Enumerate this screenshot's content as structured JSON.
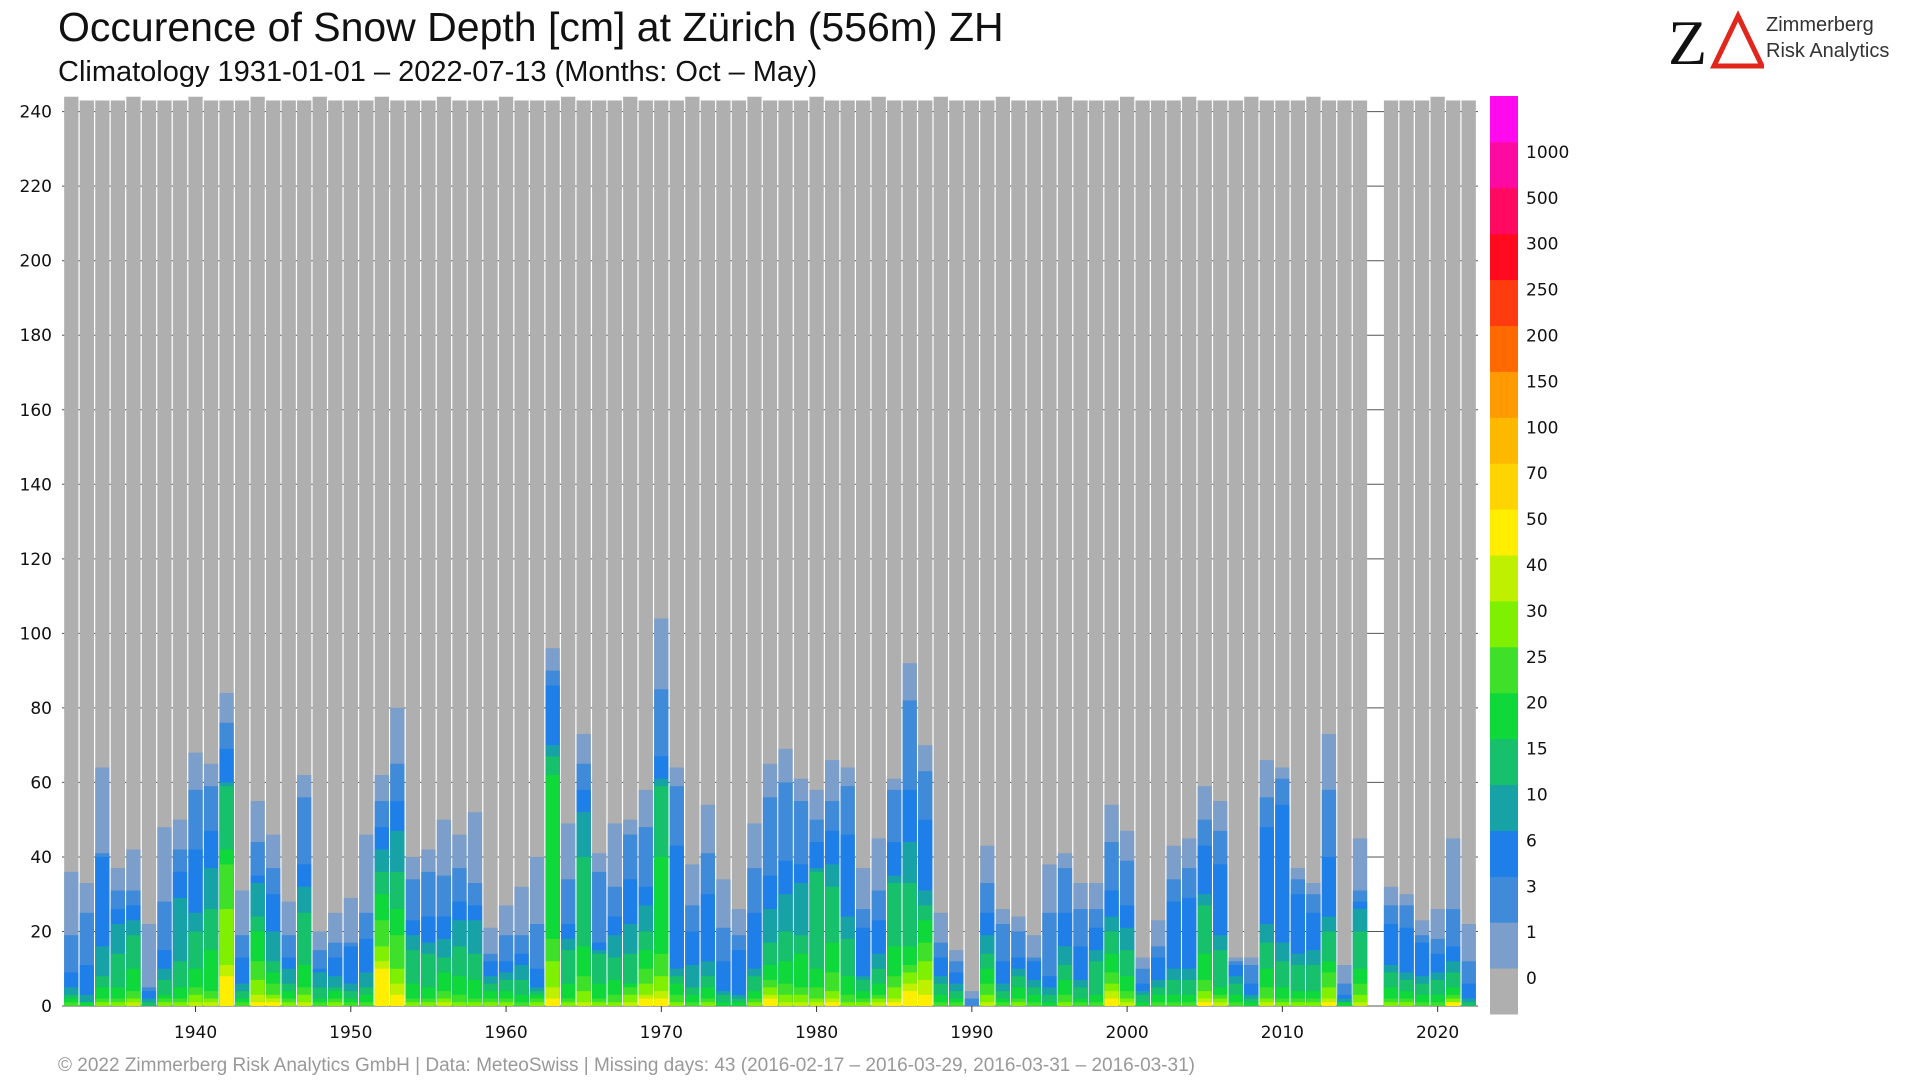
{
  "header": {
    "title": "Occurence of Snow Depth [cm] at Zürich (556m) ZH",
    "subtitle": "Climatology 1931-01-01 – 2022-07-13 (Months: Oct – May)"
  },
  "logo": {
    "line1": "Zimmerberg",
    "line2": "Risk Analytics",
    "z_color": "#111111",
    "delta_color": "#e1261c"
  },
  "footer": {
    "text": "© 2022 Zimmerberg Risk Analytics GmbH | Data: MeteoSwiss | Missing days: 43 (2016-02-17 – 2016-03-29, 2016-03-31 – 2016-03-31)"
  },
  "chart_data": {
    "type": "bar",
    "stacked": true,
    "grid": true,
    "ylim": [
      0,
      245
    ],
    "y_ticks": [
      0,
      20,
      40,
      60,
      80,
      100,
      120,
      140,
      160,
      180,
      200,
      220,
      240
    ],
    "x_tick_labels": [
      "1940",
      "1950",
      "1960",
      "1970",
      "1980",
      "1990",
      "2000",
      "2010",
      "2020"
    ],
    "x_tick_values": [
      1940,
      1950,
      1960,
      1970,
      1980,
      1990,
      2000,
      2010,
      2020
    ],
    "x_range": [
      1931.4,
      2022.6
    ],
    "legend": {
      "position": "right",
      "labels": [
        "0",
        "1",
        "3",
        "6",
        "10",
        "15",
        "20",
        "25",
        "30",
        "40",
        "50",
        "70",
        "100",
        "150",
        "200",
        "250",
        "300",
        "500",
        "1000"
      ],
      "colors": [
        "#afafaf",
        "#7b9fca",
        "#3f8ad9",
        "#1e7fe8",
        "#17a3a6",
        "#17c06b",
        "#0fd83a",
        "#3fe02a",
        "#7ff000",
        "#bff000",
        "#ffee00",
        "#ffd400",
        "#ffb800",
        "#ff9a00",
        "#ff6a00",
        "#ff3c10",
        "#ff0a1e",
        "#ff0a60",
        "#ff0aa0",
        "#ff0aee"
      ]
    },
    "thresholds": [
      1,
      3,
      6,
      10,
      15,
      20,
      25,
      30,
      40,
      50
    ],
    "series_colors": [
      "#7b9fca",
      "#3f8ad9",
      "#1e7fe8",
      "#17a3a6",
      "#17c06b",
      "#0fd83a",
      "#3fe02a",
      "#7ff000",
      "#bff000",
      "#ffee00"
    ],
    "total_color": "#afafaf",
    "years": [
      1932,
      1933,
      1934,
      1935,
      1936,
      1937,
      1938,
      1939,
      1940,
      1941,
      1942,
      1943,
      1944,
      1945,
      1946,
      1947,
      1948,
      1949,
      1950,
      1951,
      1952,
      1953,
      1954,
      1955,
      1956,
      1957,
      1958,
      1959,
      1960,
      1961,
      1962,
      1963,
      1964,
      1965,
      1966,
      1967,
      1968,
      1969,
      1970,
      1971,
      1972,
      1973,
      1974,
      1975,
      1976,
      1977,
      1978,
      1979,
      1980,
      1981,
      1982,
      1983,
      1984,
      1985,
      1986,
      1987,
      1988,
      1989,
      1990,
      1991,
      1992,
      1993,
      1994,
      1995,
      1996,
      1997,
      1998,
      1999,
      2000,
      2001,
      2002,
      2003,
      2004,
      2005,
      2006,
      2007,
      2008,
      2009,
      2010,
      2011,
      2012,
      2013,
      2014,
      2015,
      2016,
      2017,
      2018,
      2019,
      2020,
      2021,
      2022
    ],
    "total_days": [
      244,
      243,
      243,
      243,
      244,
      243,
      243,
      243,
      244,
      243,
      243,
      243,
      244,
      243,
      243,
      243,
      244,
      243,
      243,
      243,
      244,
      243,
      243,
      243,
      244,
      243,
      243,
      243,
      244,
      243,
      243,
      243,
      244,
      243,
      243,
      243,
      244,
      243,
      243,
      243,
      244,
      243,
      243,
      243,
      244,
      243,
      243,
      243,
      244,
      243,
      243,
      243,
      244,
      243,
      243,
      243,
      244,
      243,
      243,
      243,
      244,
      243,
      243,
      243,
      244,
      243,
      243,
      243,
      244,
      243,
      243,
      243,
      244,
      243,
      243,
      243,
      244,
      243,
      243,
      243,
      244,
      243,
      243,
      243,
      null,
      243,
      243,
      243,
      244,
      243,
      243
    ],
    "days_ge_1": [
      36,
      33,
      64,
      37,
      42,
      22,
      48,
      50,
      68,
      65,
      84,
      31,
      55,
      46,
      28,
      62,
      20,
      25,
      29,
      46,
      62,
      80,
      40,
      42,
      50,
      46,
      52,
      21,
      27,
      32,
      40,
      96,
      49,
      73,
      41,
      49,
      50,
      58,
      104,
      64,
      38,
      54,
      34,
      26,
      49,
      65,
      69,
      61,
      58,
      66,
      64,
      37,
      45,
      61,
      92,
      70,
      25,
      15,
      4,
      43,
      26,
      24,
      19,
      38,
      41,
      33,
      33,
      54,
      47,
      13,
      23,
      43,
      45,
      59,
      55,
      13,
      13,
      66,
      64,
      37,
      33,
      73,
      11,
      45,
      null,
      32,
      30,
      23,
      26,
      45,
      22
    ],
    "days_ge_3": [
      19,
      25,
      41,
      31,
      31,
      5,
      28,
      42,
      58,
      59,
      76,
      19,
      44,
      37,
      19,
      56,
      15,
      17,
      17,
      25,
      55,
      65,
      34,
      36,
      35,
      37,
      33,
      14,
      19,
      19,
      22,
      90,
      34,
      65,
      36,
      32,
      46,
      48,
      85,
      59,
      27,
      41,
      21,
      19,
      37,
      56,
      60,
      55,
      50,
      55,
      59,
      26,
      31,
      58,
      82,
      63,
      17,
      12,
      2,
      33,
      22,
      20,
      13,
      25,
      37,
      26,
      26,
      44,
      39,
      10,
      16,
      34,
      37,
      50,
      47,
      12,
      11,
      56,
      61,
      34,
      30,
      58,
      6,
      31,
      null,
      27,
      27,
      19,
      18,
      26,
      12
    ],
    "days_ge_6": [
      9,
      11,
      40,
      26,
      27,
      4,
      15,
      36,
      42,
      47,
      69,
      13,
      35,
      30,
      13,
      38,
      10,
      13,
      16,
      18,
      48,
      55,
      23,
      24,
      24,
      28,
      27,
      12,
      12,
      14,
      10,
      86,
      22,
      58,
      17,
      24,
      34,
      32,
      67,
      43,
      20,
      30,
      12,
      15,
      25,
      35,
      39,
      38,
      44,
      47,
      46,
      21,
      23,
      44,
      58,
      50,
      13,
      9,
      0,
      25,
      12,
      13,
      12,
      8,
      25,
      16,
      21,
      31,
      27,
      6,
      13,
      28,
      29,
      43,
      38,
      11,
      6,
      48,
      54,
      30,
      25,
      40,
      3,
      28,
      null,
      22,
      21,
      17,
      14,
      16,
      6
    ],
    "days_ge_10": [
      5,
      3,
      16,
      22,
      23,
      2,
      10,
      29,
      25,
      37,
      60,
      6,
      33,
      20,
      10,
      32,
      9,
      8,
      6,
      9,
      42,
      47,
      19,
      17,
      18,
      23,
      23,
      8,
      9,
      11,
      5,
      70,
      18,
      52,
      15,
      19,
      22,
      27,
      61,
      10,
      11,
      12,
      4,
      3,
      10,
      26,
      30,
      33,
      37,
      38,
      24,
      8,
      14,
      35,
      44,
      31,
      8,
      6,
      0,
      19,
      6,
      10,
      7,
      5,
      16,
      7,
      15,
      24,
      21,
      4,
      7,
      10,
      10,
      30,
      19,
      8,
      3,
      22,
      17,
      14,
      15,
      24,
      2,
      26,
      null,
      11,
      9,
      8,
      9,
      12,
      2
    ],
    "days_ge_15": [
      3,
      1,
      8,
      14,
      19,
      1,
      7,
      12,
      20,
      26,
      59,
      4,
      24,
      12,
      6,
      25,
      5,
      5,
      4,
      5,
      36,
      36,
      15,
      14,
      13,
      16,
      14,
      6,
      7,
      7,
      4,
      67,
      15,
      40,
      14,
      13,
      14,
      20,
      59,
      8,
      5,
      8,
      3,
      2,
      8,
      17,
      20,
      19,
      36,
      32,
      18,
      7,
      10,
      33,
      33,
      27,
      6,
      4,
      0,
      14,
      4,
      8,
      5,
      3,
      11,
      5,
      12,
      20,
      15,
      3,
      5,
      7,
      7,
      27,
      15,
      6,
      2,
      17,
      12,
      11,
      11,
      20,
      1,
      20,
      null,
      9,
      7,
      6,
      7,
      9,
      1
    ],
    "days_ge_20": [
      2,
      1,
      5,
      5,
      10,
      0,
      3,
      5,
      10,
      15,
      42,
      2,
      20,
      9,
      4,
      11,
      2,
      4,
      2,
      3,
      30,
      26,
      6,
      5,
      9,
      8,
      7,
      4,
      4,
      3,
      3,
      62,
      6,
      16,
      6,
      7,
      6,
      15,
      40,
      6,
      3,
      5,
      1,
      1,
      4,
      11,
      12,
      14,
      10,
      17,
      8,
      4,
      6,
      16,
      16,
      23,
      3,
      2,
      0,
      10,
      2,
      5,
      3,
      1,
      7,
      2,
      3,
      14,
      8,
      1,
      3,
      3,
      3,
      14,
      5,
      3,
      1,
      10,
      5,
      4,
      4,
      12,
      1,
      10,
      null,
      5,
      4,
      3,
      3,
      5,
      0
    ],
    "days_ge_25": [
      1,
      0,
      2,
      2,
      4,
      0,
      2,
      2,
      5,
      4,
      38,
      1,
      12,
      6,
      2,
      5,
      1,
      2,
      1,
      1,
      23,
      19,
      2,
      2,
      4,
      3,
      2,
      2,
      2,
      1,
      2,
      18,
      2,
      8,
      2,
      3,
      5,
      10,
      14,
      3,
      1,
      2,
      0,
      0,
      2,
      7,
      6,
      5,
      5,
      9,
      3,
      2,
      3,
      8,
      11,
      17,
      1,
      1,
      0,
      6,
      1,
      2,
      1,
      0,
      3,
      1,
      1,
      9,
      4,
      0,
      1,
      1,
      1,
      7,
      3,
      1,
      0,
      5,
      2,
      2,
      2,
      9,
      0,
      6,
      null,
      2,
      2,
      1,
      1,
      3,
      0
    ],
    "days_ge_30": [
      0,
      0,
      1,
      1,
      2,
      0,
      1,
      1,
      3,
      2,
      26,
      0,
      7,
      3,
      1,
      3,
      0,
      1,
      0,
      0,
      16,
      10,
      1,
      1,
      2,
      1,
      1,
      1,
      1,
      0,
      1,
      12,
      1,
      4,
      1,
      1,
      3,
      6,
      8,
      1,
      0,
      1,
      0,
      0,
      1,
      5,
      3,
      3,
      2,
      4,
      1,
      1,
      2,
      5,
      9,
      12,
      0,
      0,
      0,
      3,
      0,
      1,
      0,
      0,
      1,
      0,
      0,
      6,
      2,
      0,
      0,
      0,
      0,
      4,
      2,
      0,
      0,
      2,
      1,
      1,
      1,
      5,
      0,
      3,
      null,
      1,
      1,
      0,
      0,
      2,
      0
    ],
    "days_ge_40": [
      0,
      0,
      0,
      0,
      1,
      0,
      0,
      0,
      1,
      1,
      11,
      0,
      3,
      2,
      0,
      1,
      0,
      0,
      0,
      0,
      12,
      6,
      0,
      0,
      1,
      0,
      0,
      0,
      0,
      0,
      0,
      5,
      0,
      1,
      0,
      0,
      1,
      3,
      4,
      0,
      0,
      0,
      0,
      0,
      0,
      3,
      1,
      1,
      1,
      2,
      0,
      0,
      1,
      2,
      6,
      7,
      0,
      0,
      0,
      1,
      0,
      0,
      0,
      0,
      0,
      0,
      0,
      4,
      1,
      0,
      0,
      0,
      0,
      2,
      1,
      0,
      0,
      1,
      0,
      0,
      0,
      2,
      0,
      1,
      null,
      0,
      0,
      0,
      0,
      1,
      0
    ],
    "days_ge_50": [
      0,
      0,
      0,
      0,
      0,
      0,
      0,
      0,
      0,
      0,
      8,
      0,
      1,
      1,
      0,
      0,
      0,
      0,
      0,
      0,
      10,
      3,
      0,
      0,
      0,
      0,
      0,
      0,
      0,
      0,
      0,
      2,
      0,
      0,
      0,
      0,
      0,
      2,
      2,
      0,
      0,
      0,
      0,
      0,
      0,
      2,
      0,
      0,
      0,
      1,
      0,
      0,
      0,
      1,
      4,
      3,
      0,
      0,
      0,
      0,
      0,
      0,
      0,
      0,
      0,
      0,
      0,
      2,
      0,
      0,
      0,
      0,
      0,
      1,
      0,
      0,
      0,
      0,
      0,
      0,
      0,
      1,
      0,
      0,
      null,
      0,
      0,
      0,
      0,
      1,
      0
    ]
  }
}
